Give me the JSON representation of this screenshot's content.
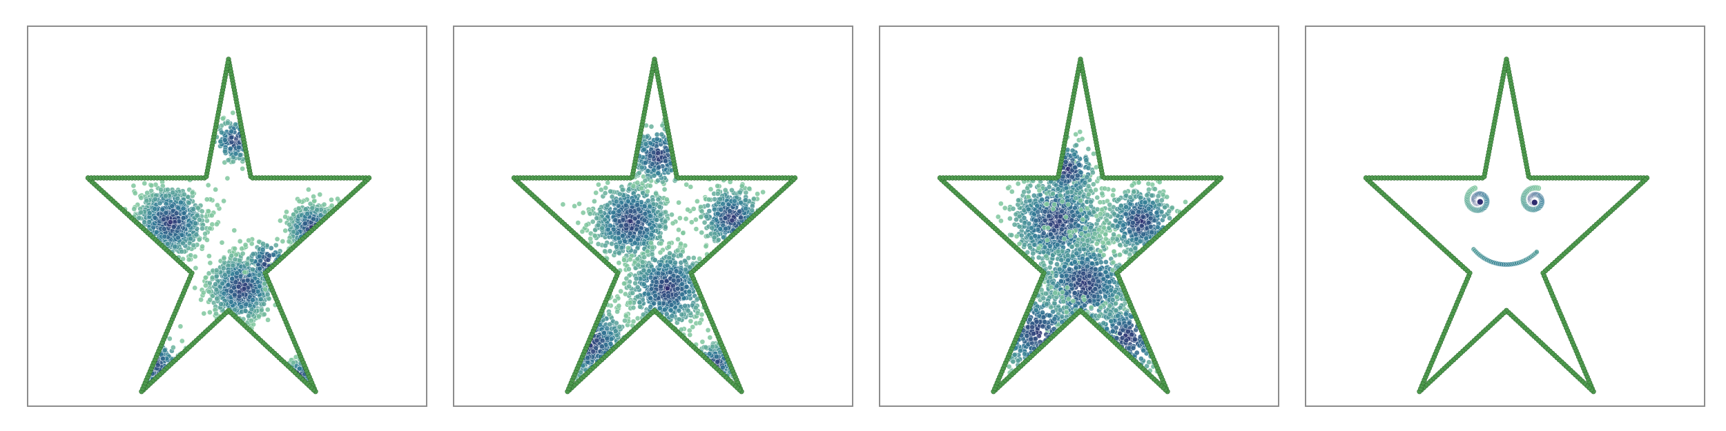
{
  "chart_data": [
    {
      "type": "scatter",
      "title": "",
      "xlabel": "",
      "ylabel": "",
      "axes_visible": false,
      "grid": false,
      "boundary": {
        "shape": "star",
        "points": 5,
        "color": "#4f9a4f",
        "point_count": 400,
        "vertices": [
          [
            0.0,
            1.0
          ],
          [
            0.105,
            0.445
          ],
          [
            0.658,
            0.445
          ],
          [
            0.171,
            0.0
          ],
          [
            0.407,
            -0.555
          ],
          [
            0.0,
            -0.175
          ],
          [
            -0.407,
            -0.555
          ],
          [
            -0.171,
            0.0
          ],
          [
            -0.658,
            0.445
          ],
          [
            -0.105,
            0.445
          ]
        ]
      },
      "colormap": {
        "name": "viridis-like",
        "dense": "#2e2a6e",
        "mid": "#2f7a95",
        "sparse": "#7fc79e"
      },
      "clusters": [
        {
          "center": [
            -0.27,
            0.24
          ],
          "spread": 0.08,
          "count": 750
        },
        {
          "center": [
            0.06,
            -0.07
          ],
          "spread": 0.075,
          "count": 700
        },
        {
          "center": [
            0.39,
            0.21
          ],
          "spread": 0.055,
          "count": 380
        },
        {
          "center": [
            0.03,
            0.62
          ],
          "spread": 0.05,
          "count": 130
        },
        {
          "center": [
            -0.36,
            -0.43
          ],
          "spread": 0.07,
          "count": 110
        },
        {
          "center": [
            0.33,
            -0.48
          ],
          "spread": 0.035,
          "count": 90
        },
        {
          "center": [
            0.18,
            0.05
          ],
          "spread": 0.05,
          "count": 90
        }
      ],
      "ylim": [
        -0.62,
        1.05
      ]
    },
    {
      "type": "scatter",
      "title": "",
      "xlabel": "",
      "ylabel": "",
      "axes_visible": false,
      "grid": false,
      "boundary": {
        "shape": "star",
        "points": 5,
        "color": "#4f9a4f",
        "point_count": 400,
        "vertices": [
          [
            0.0,
            1.0
          ],
          [
            0.105,
            0.445
          ],
          [
            0.658,
            0.445
          ],
          [
            0.171,
            0.0
          ],
          [
            0.407,
            -0.555
          ],
          [
            0.0,
            -0.175
          ],
          [
            -0.407,
            -0.555
          ],
          [
            -0.171,
            0.0
          ],
          [
            -0.658,
            0.445
          ],
          [
            -0.105,
            0.445
          ]
        ]
      },
      "colormap": {
        "name": "viridis-like",
        "dense": "#2e2a6e",
        "mid": "#2f7a95",
        "sparse": "#7fc79e"
      },
      "clusters": [
        {
          "center": [
            -0.11,
            0.24
          ],
          "spread": 0.09,
          "count": 700
        },
        {
          "center": [
            0.06,
            -0.07
          ],
          "spread": 0.09,
          "count": 650
        },
        {
          "center": [
            0.36,
            0.26
          ],
          "spread": 0.07,
          "count": 340
        },
        {
          "center": [
            0.02,
            0.55
          ],
          "spread": 0.07,
          "count": 200
        },
        {
          "center": [
            -0.3,
            -0.33
          ],
          "spread": 0.09,
          "count": 260
        },
        {
          "center": [
            0.28,
            -0.43
          ],
          "spread": 0.05,
          "count": 170
        }
      ],
      "ylim": [
        -0.62,
        1.05
      ]
    },
    {
      "type": "scatter",
      "title": "",
      "xlabel": "",
      "ylabel": "",
      "axes_visible": false,
      "grid": false,
      "boundary": {
        "shape": "star",
        "points": 5,
        "color": "#4f9a4f",
        "point_count": 400,
        "vertices": [
          [
            0.0,
            1.0
          ],
          [
            0.105,
            0.445
          ],
          [
            0.658,
            0.445
          ],
          [
            0.171,
            0.0
          ],
          [
            0.407,
            -0.555
          ],
          [
            0.0,
            -0.175
          ],
          [
            -0.407,
            -0.555
          ],
          [
            -0.171,
            0.0
          ],
          [
            -0.658,
            0.445
          ],
          [
            -0.105,
            0.445
          ]
        ]
      },
      "colormap": {
        "name": "viridis-like",
        "dense": "#2e2a6e",
        "mid": "#2f7a95",
        "sparse": "#7fc79e"
      },
      "clusters": [
        {
          "center": [
            -0.11,
            0.24
          ],
          "spread": 0.11,
          "count": 800
        },
        {
          "center": [
            0.02,
            -0.05
          ],
          "spread": 0.11,
          "count": 650
        },
        {
          "center": [
            0.28,
            0.24
          ],
          "spread": 0.08,
          "count": 420
        },
        {
          "center": [
            -0.06,
            0.48
          ],
          "spread": 0.07,
          "count": 170
        },
        {
          "center": [
            -0.2,
            -0.28
          ],
          "spread": 0.1,
          "count": 230
        },
        {
          "center": [
            0.22,
            -0.3
          ],
          "spread": 0.09,
          "count": 180
        }
      ],
      "ylim": [
        -0.62,
        1.05
      ]
    },
    {
      "type": "scatter",
      "title": "",
      "xlabel": "",
      "ylabel": "",
      "axes_visible": false,
      "grid": false,
      "boundary": {
        "shape": "star",
        "points": 5,
        "color": "#4f9a4f",
        "point_count": 400,
        "vertices": [
          [
            0.0,
            1.0
          ],
          [
            0.105,
            0.445
          ],
          [
            0.658,
            0.445
          ],
          [
            0.171,
            0.0
          ],
          [
            0.407,
            -0.555
          ],
          [
            0.0,
            -0.175
          ],
          [
            -0.407,
            -0.555
          ],
          [
            -0.171,
            0.0
          ],
          [
            -0.658,
            0.445
          ],
          [
            -0.105,
            0.445
          ]
        ]
      },
      "colormap": {
        "name": "viridis-like",
        "dense": "#2e2a6e",
        "mid": "#2f7a95",
        "sparse": "#7fc79e"
      },
      "face": {
        "left_eye": {
          "center": [
            -0.13,
            0.34
          ],
          "radius": 0.06
        },
        "right_eye": {
          "center": [
            0.13,
            0.34
          ],
          "radius": 0.06
        },
        "mouth": {
          "center": [
            0.0,
            0.24
          ],
          "radius": 0.2,
          "start_angle_deg": 220,
          "end_angle_deg": 315
        }
      },
      "ylim": [
        -0.62,
        1.05
      ]
    }
  ]
}
